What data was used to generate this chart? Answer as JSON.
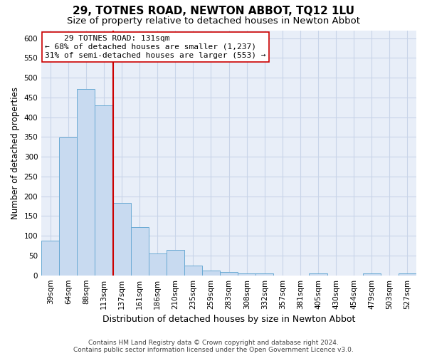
{
  "title": "29, TOTNES ROAD, NEWTON ABBOT, TQ12 1LU",
  "subtitle": "Size of property relative to detached houses in Newton Abbot",
  "xlabel": "Distribution of detached houses by size in Newton Abbot",
  "ylabel": "Number of detached properties",
  "footer_line1": "Contains HM Land Registry data © Crown copyright and database right 2024.",
  "footer_line2": "Contains public sector information licensed under the Open Government Licence v3.0.",
  "annotation_line1": "    29 TOTNES ROAD: 131sqm    ",
  "annotation_line2": "← 68% of detached houses are smaller (1,237)",
  "annotation_line3": "31% of semi-detached houses are larger (553) →",
  "bar_color": "#c8daf0",
  "bar_edge_color": "#6aaad4",
  "vline_color": "#cc0000",
  "categories": [
    "39sqm",
    "64sqm",
    "88sqm",
    "113sqm",
    "137sqm",
    "161sqm",
    "186sqm",
    "210sqm",
    "235sqm",
    "259sqm",
    "283sqm",
    "308sqm",
    "332sqm",
    "357sqm",
    "381sqm",
    "405sqm",
    "430sqm",
    "454sqm",
    "479sqm",
    "503sqm",
    "527sqm"
  ],
  "values": [
    88,
    348,
    472,
    430,
    183,
    122,
    55,
    65,
    25,
    12,
    8,
    5,
    5,
    0,
    0,
    5,
    0,
    0,
    5,
    0,
    5
  ],
  "ylim": [
    0,
    620
  ],
  "yticks": [
    0,
    50,
    100,
    150,
    200,
    250,
    300,
    350,
    400,
    450,
    500,
    550,
    600
  ],
  "grid_color": "#c8d4e8",
  "bg_color": "#e8eef8",
  "title_fontsize": 11,
  "subtitle_fontsize": 9.5,
  "xlabel_fontsize": 9,
  "ylabel_fontsize": 8.5,
  "tick_fontsize": 7.5,
  "ann_fontsize": 8,
  "footer_fontsize": 6.5
}
